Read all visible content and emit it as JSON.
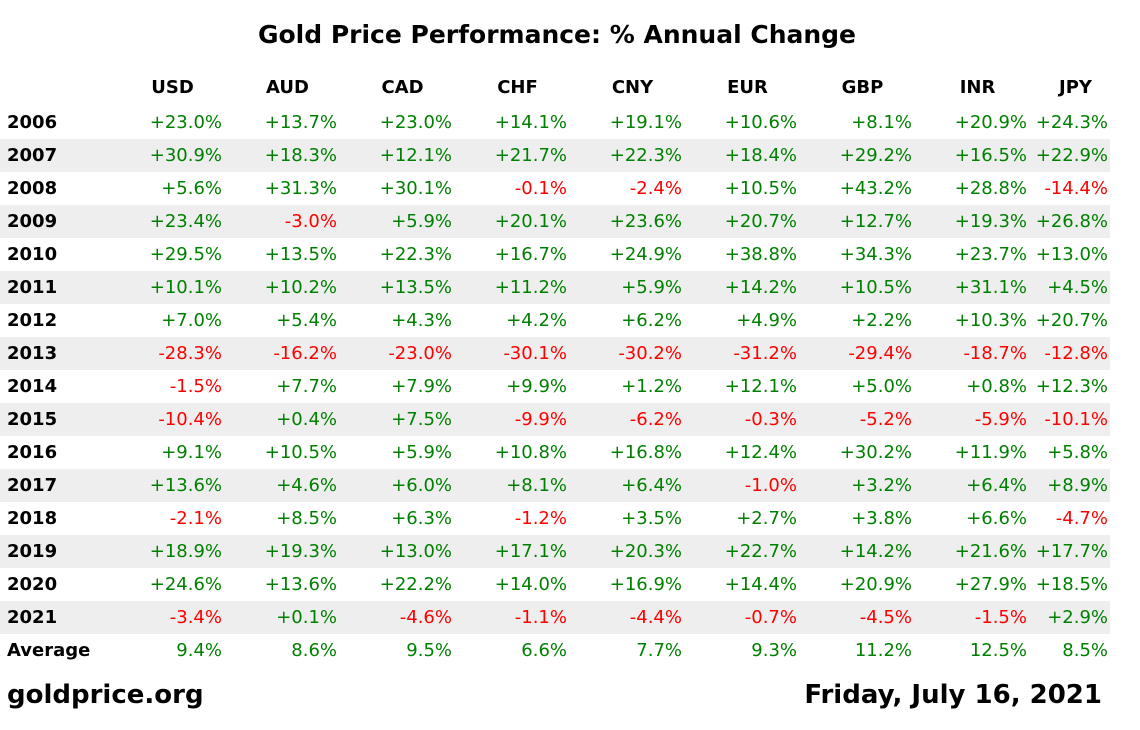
{
  "chart_data": {
    "type": "table",
    "title": "Gold Price Performance: % Annual Change",
    "columns": [
      "USD",
      "AUD",
      "CAD",
      "CHF",
      "CNY",
      "EUR",
      "GBP",
      "INR",
      "JPY"
    ],
    "rows": [
      {
        "label": "2006",
        "values": [
          "+23.0%",
          "+13.7%",
          "+23.0%",
          "+14.1%",
          "+19.1%",
          "+10.6%",
          "+8.1%",
          "+20.9%",
          "+24.3%"
        ]
      },
      {
        "label": "2007",
        "values": [
          "+30.9%",
          "+18.3%",
          "+12.1%",
          "+21.7%",
          "+22.3%",
          "+18.4%",
          "+29.2%",
          "+16.5%",
          "+22.9%"
        ]
      },
      {
        "label": "2008",
        "values": [
          "+5.6%",
          "+31.3%",
          "+30.1%",
          "-0.1%",
          "-2.4%",
          "+10.5%",
          "+43.2%",
          "+28.8%",
          "-14.4%"
        ]
      },
      {
        "label": "2009",
        "values": [
          "+23.4%",
          "-3.0%",
          "+5.9%",
          "+20.1%",
          "+23.6%",
          "+20.7%",
          "+12.7%",
          "+19.3%",
          "+26.8%"
        ]
      },
      {
        "label": "2010",
        "values": [
          "+29.5%",
          "+13.5%",
          "+22.3%",
          "+16.7%",
          "+24.9%",
          "+38.8%",
          "+34.3%",
          "+23.7%",
          "+13.0%"
        ]
      },
      {
        "label": "2011",
        "values": [
          "+10.1%",
          "+10.2%",
          "+13.5%",
          "+11.2%",
          "+5.9%",
          "+14.2%",
          "+10.5%",
          "+31.1%",
          "+4.5%"
        ]
      },
      {
        "label": "2012",
        "values": [
          "+7.0%",
          "+5.4%",
          "+4.3%",
          "+4.2%",
          "+6.2%",
          "+4.9%",
          "+2.2%",
          "+10.3%",
          "+20.7%"
        ]
      },
      {
        "label": "2013",
        "values": [
          "-28.3%",
          "-16.2%",
          "-23.0%",
          "-30.1%",
          "-30.2%",
          "-31.2%",
          "-29.4%",
          "-18.7%",
          "-12.8%"
        ]
      },
      {
        "label": "2014",
        "values": [
          "-1.5%",
          "+7.7%",
          "+7.9%",
          "+9.9%",
          "+1.2%",
          "+12.1%",
          "+5.0%",
          "+0.8%",
          "+12.3%"
        ]
      },
      {
        "label": "2015",
        "values": [
          "-10.4%",
          "+0.4%",
          "+7.5%",
          "-9.9%",
          "-6.2%",
          "-0.3%",
          "-5.2%",
          "-5.9%",
          "-10.1%"
        ]
      },
      {
        "label": "2016",
        "values": [
          "+9.1%",
          "+10.5%",
          "+5.9%",
          "+10.8%",
          "+16.8%",
          "+12.4%",
          "+30.2%",
          "+11.9%",
          "+5.8%"
        ]
      },
      {
        "label": "2017",
        "values": [
          "+13.6%",
          "+4.6%",
          "+6.0%",
          "+8.1%",
          "+6.4%",
          "-1.0%",
          "+3.2%",
          "+6.4%",
          "+8.9%"
        ]
      },
      {
        "label": "2018",
        "values": [
          "-2.1%",
          "+8.5%",
          "+6.3%",
          "-1.2%",
          "+3.5%",
          "+2.7%",
          "+3.8%",
          "+6.6%",
          "-4.7%"
        ]
      },
      {
        "label": "2019",
        "values": [
          "+18.9%",
          "+19.3%",
          "+13.0%",
          "+17.1%",
          "+20.3%",
          "+22.7%",
          "+14.2%",
          "+21.6%",
          "+17.7%"
        ]
      },
      {
        "label": "2020",
        "values": [
          "+24.6%",
          "+13.6%",
          "+22.2%",
          "+14.0%",
          "+16.9%",
          "+14.4%",
          "+20.9%",
          "+27.9%",
          "+18.5%"
        ]
      },
      {
        "label": "2021",
        "values": [
          "-3.4%",
          "+0.1%",
          "-4.6%",
          "-1.1%",
          "-4.4%",
          "-0.7%",
          "-4.5%",
          "-1.5%",
          "+2.9%"
        ]
      },
      {
        "label": "Average",
        "values": [
          "9.4%",
          "8.6%",
          "9.5%",
          "6.6%",
          "7.7%",
          "9.3%",
          "11.2%",
          "12.5%",
          "8.5%"
        ]
      }
    ],
    "colors": {
      "positive": "#008000",
      "negative": "#ff0000",
      "stripe": "#eeeeee"
    }
  },
  "footer": {
    "source": "goldprice.org",
    "date": "Friday, July 16, 2021"
  }
}
